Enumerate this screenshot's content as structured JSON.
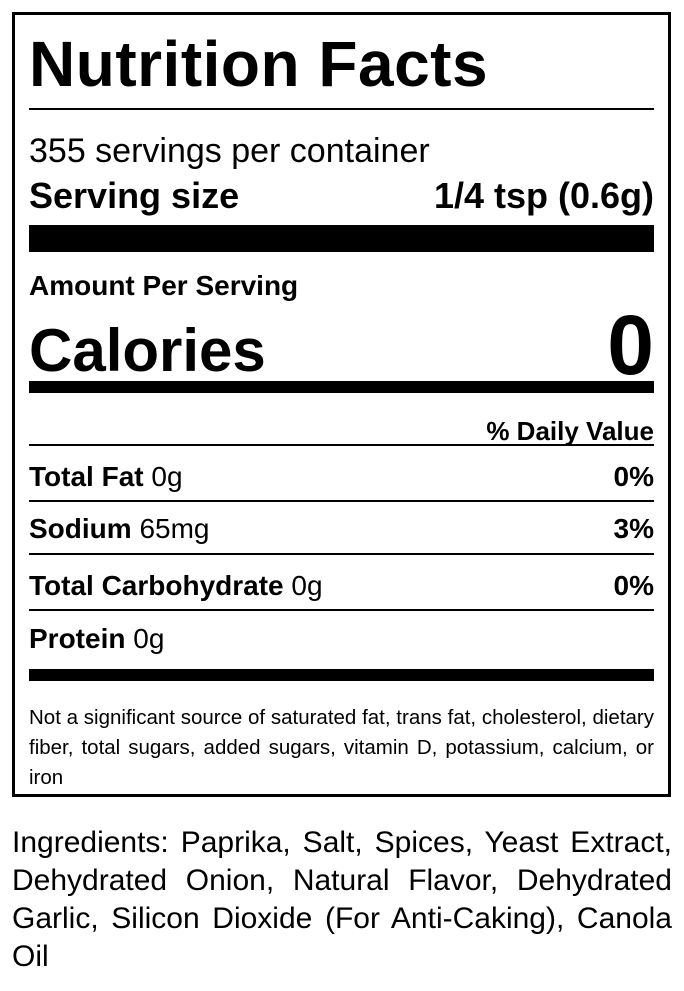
{
  "label": {
    "title": "Nutrition Facts",
    "servings_per_container": "355 servings per container",
    "serving_size_label": "Serving size",
    "serving_size_value": "1/4 tsp (0.6g)",
    "amount_per_serving": "Amount Per Serving",
    "calories_label": "Calories",
    "calories_value": "0",
    "daily_value_header": "% Daily Value",
    "nutrients": [
      {
        "name": "Total Fat",
        "amount": "0g",
        "dv": "0%"
      },
      {
        "name": "Sodium",
        "amount": "65mg",
        "dv": "3%"
      },
      {
        "name": "Total Carbohydrate",
        "amount": "0g",
        "dv": "0%"
      },
      {
        "name": "Protein",
        "amount": "0g",
        "dv": ""
      }
    ],
    "footnote": "Not a significant source of saturated fat, trans fat, cholesterol, dietary fiber, total sugars, added sugars, vitamin D, potassium, calcium, or iron"
  },
  "ingredients": "Ingredients: Paprika, Salt, Spices, Yeast Extract, Dehydrated Onion, Natural Flavor, Dehydrated Garlic, Silicon Dioxide (For Anti-Caking), Canola Oil"
}
